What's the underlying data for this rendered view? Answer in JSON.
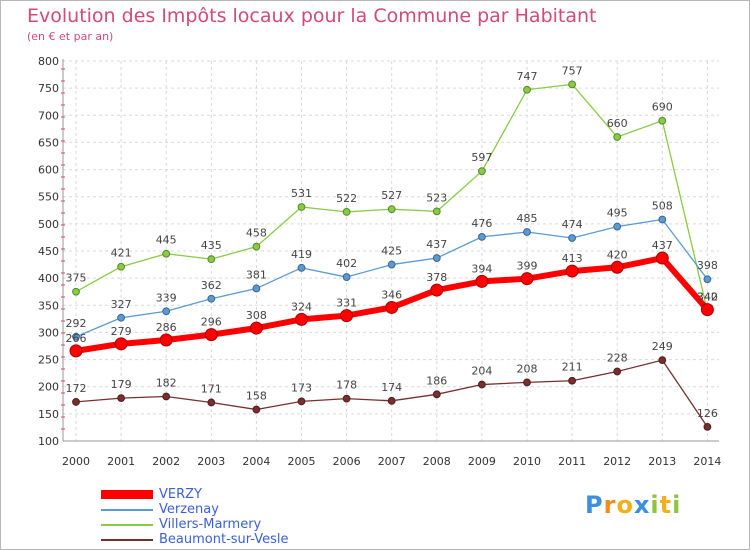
{
  "chart_data": {
    "type": "line",
    "title": "Evolution des Impôts locaux pour la Commune par Habitant",
    "subtitle": "(en € et par an)",
    "categories": [
      "2000",
      "2001",
      "2002",
      "2003",
      "2004",
      "2005",
      "2006",
      "2007",
      "2008",
      "2009",
      "2010",
      "2011",
      "2012",
      "2013",
      "2014"
    ],
    "ylim": [
      100,
      800
    ],
    "yticks": [
      100,
      150,
      200,
      250,
      300,
      350,
      400,
      450,
      500,
      550,
      600,
      650,
      700,
      750,
      800
    ],
    "grid": true,
    "legend_position": "bottom-left",
    "series": [
      {
        "name": "Villers-Marmery",
        "color": "#88cc44",
        "values": [
          375,
          421,
          445,
          435,
          458,
          531,
          522,
          527,
          523,
          597,
          747,
          757,
          660,
          690,
          340
        ]
      },
      {
        "name": "Verzenay",
        "color": "#5b9bd5",
        "values": [
          292,
          327,
          339,
          362,
          381,
          419,
          402,
          425,
          437,
          476,
          485,
          474,
          495,
          508,
          398
        ]
      },
      {
        "name": "VERZY",
        "color": "#ff0000",
        "values": [
          266,
          279,
          286,
          296,
          308,
          324,
          331,
          346,
          378,
          394,
          399,
          413,
          420,
          437,
          342
        ]
      },
      {
        "name": "Beaumont-sur-Vesle",
        "color": "#7a2e2e",
        "values": [
          172,
          179,
          182,
          171,
          158,
          173,
          178,
          174,
          186,
          204,
          208,
          211,
          228,
          249,
          126
        ]
      }
    ],
    "legend_order": [
      "VERZY",
      "Verzenay",
      "Villers-Marmery",
      "Beaumont-sur-Vesle"
    ]
  },
  "logo": {
    "letters": [
      "P",
      "r",
      "o",
      "x",
      "i",
      "t",
      "i"
    ],
    "colors": [
      "#3c8ede",
      "#f28c1e",
      "#f2b01e",
      "#3c8ede",
      "#8cc63e",
      "#f2b01e",
      "#8cc63e"
    ]
  }
}
